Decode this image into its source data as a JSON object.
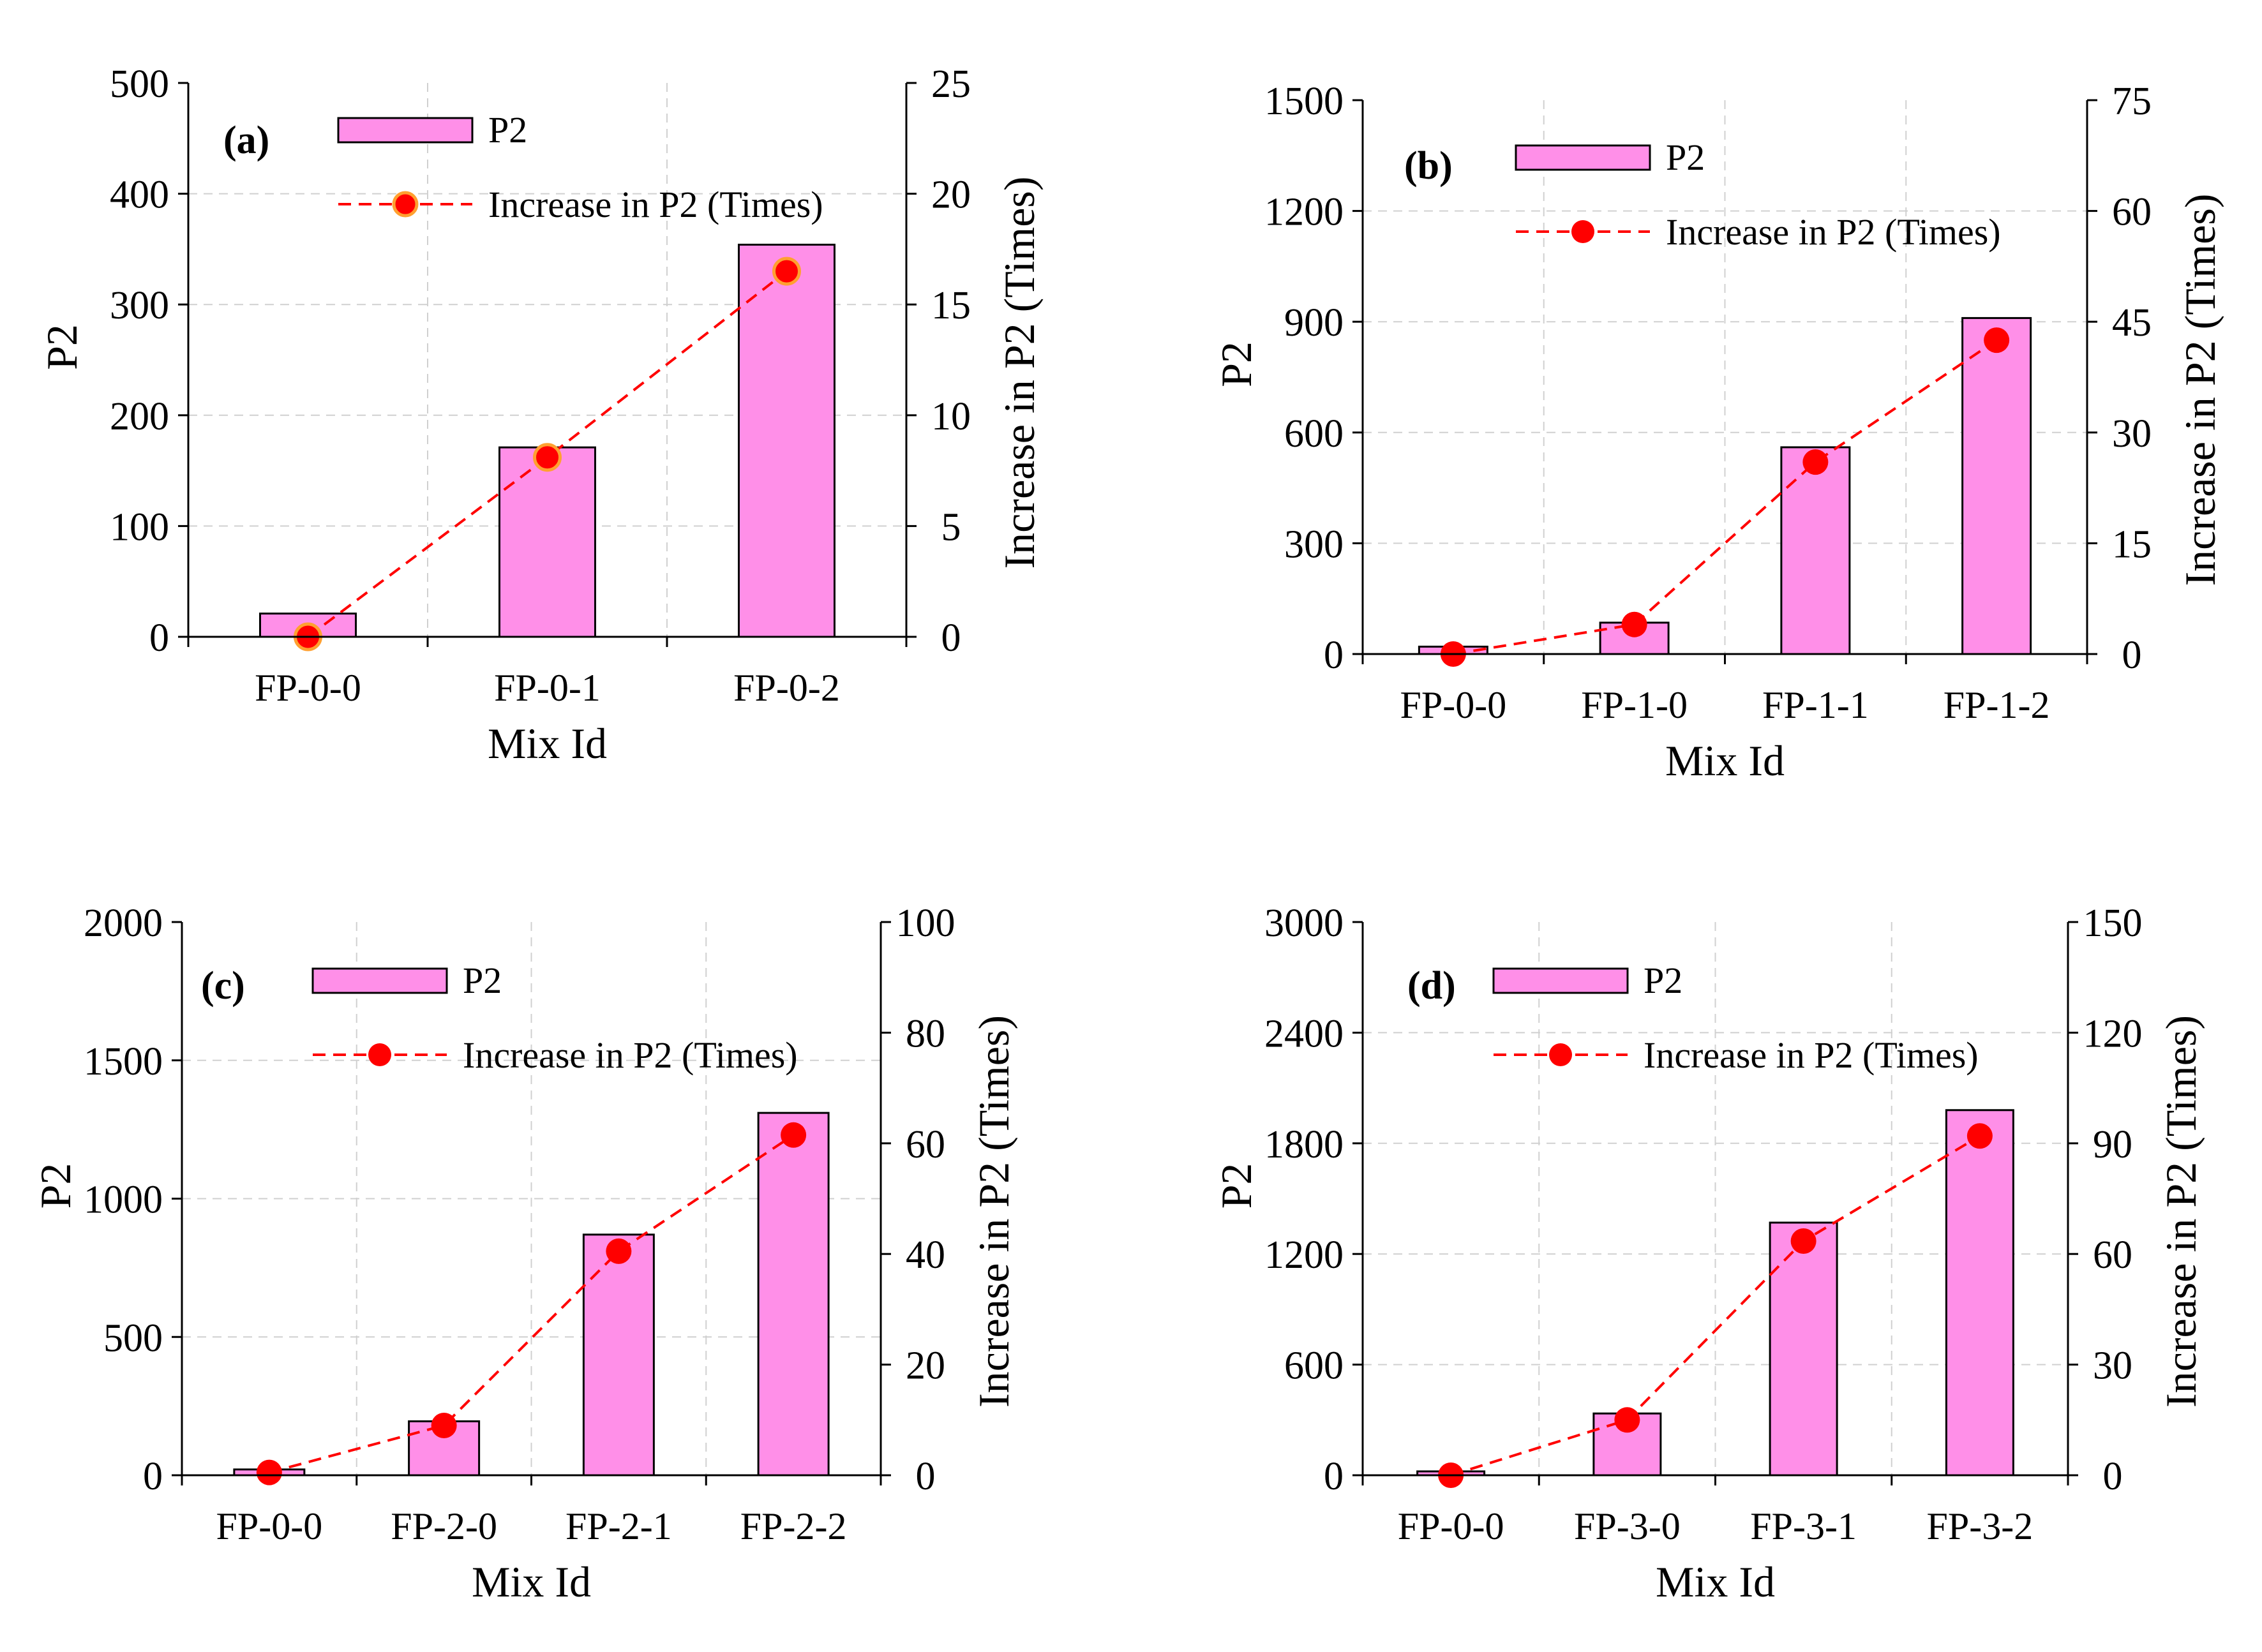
{
  "colors": {
    "bar_fill": "#FF8FE8",
    "bar_stroke": "#000000",
    "line": "#FF0000",
    "marker": "#FF0000",
    "marker_edge_a": "#FFA030",
    "grid": "#D0D0D0"
  },
  "legend": {
    "bar_label": "P2",
    "line_label": "Increase in P2 (Times)"
  },
  "chart_data": [
    {
      "panel": "(a)",
      "type": "bar+line",
      "xlabel": "Mix Id",
      "ylabel": "P2",
      "y2label": "Increase in P2 (Times)",
      "categories": [
        "FP-0-0",
        "FP-0-1",
        "FP-0-2"
      ],
      "series": [
        {
          "name": "P2",
          "type": "bar",
          "axis": "left",
          "values": [
            21,
            171,
            354
          ]
        },
        {
          "name": "Increase in P2 (Times)",
          "type": "line",
          "axis": "right",
          "values": [
            0,
            8.1,
            16.5
          ]
        }
      ],
      "ylim": [
        0,
        500
      ],
      "yticks": [
        0,
        100,
        200,
        300,
        400,
        500
      ],
      "y2lim": [
        0,
        25
      ],
      "y2ticks": [
        0,
        5,
        10,
        15,
        20,
        25
      ],
      "grid": true,
      "legend_position": "top-right"
    },
    {
      "panel": "(b)",
      "type": "bar+line",
      "xlabel": "Mix Id",
      "ylabel": "P2",
      "y2label": "Increase in P2 (Times)",
      "categories": [
        "FP-0-0",
        "FP-1-0",
        "FP-1-1",
        "FP-1-2"
      ],
      "series": [
        {
          "name": "P2",
          "type": "bar",
          "axis": "left",
          "values": [
            20,
            85,
            560,
            910
          ]
        },
        {
          "name": "Increase in P2 (Times)",
          "type": "line",
          "axis": "right",
          "values": [
            0,
            4,
            26,
            42.5
          ]
        }
      ],
      "ylim": [
        0,
        1500
      ],
      "yticks": [
        0,
        300,
        600,
        900,
        1200,
        1500
      ],
      "y2lim": [
        0,
        75
      ],
      "y2ticks": [
        0,
        15,
        30,
        45,
        60,
        75
      ],
      "grid": true,
      "legend_position": "top-right"
    },
    {
      "panel": "(c)",
      "type": "bar+line",
      "xlabel": "Mix Id",
      "ylabel": "P2",
      "y2label": "Increase in P2 (Times)",
      "categories": [
        "FP-0-0",
        "FP-2-0",
        "FP-2-1",
        "FP-2-2"
      ],
      "series": [
        {
          "name": "P2",
          "type": "bar",
          "axis": "left",
          "values": [
            21,
            195,
            870,
            1310
          ]
        },
        {
          "name": "Increase in P2 (Times)",
          "type": "line",
          "axis": "right",
          "values": [
            0.5,
            9,
            40.5,
            61.5
          ]
        }
      ],
      "ylim": [
        0,
        2000
      ],
      "yticks": [
        0,
        500,
        1000,
        1500,
        2000
      ],
      "y2lim": [
        0,
        100
      ],
      "y2ticks": [
        0,
        20,
        40,
        60,
        80,
        100
      ],
      "grid": true,
      "legend_position": "top-right"
    },
    {
      "panel": "(d)",
      "type": "bar+line",
      "xlabel": "Mix Id",
      "ylabel": "P2",
      "y2label": "Increase in P2 (Times)",
      "categories": [
        "FP-0-0",
        "FP-3-0",
        "FP-3-1",
        "FP-3-2"
      ],
      "series": [
        {
          "name": "P2",
          "type": "bar",
          "axis": "left",
          "values": [
            21,
            335,
            1370,
            1980
          ]
        },
        {
          "name": "Increase in P2 (Times)",
          "type": "line",
          "axis": "right",
          "values": [
            0,
            15,
            63.5,
            92
          ]
        }
      ],
      "ylim": [
        0,
        3000
      ],
      "yticks": [
        0,
        600,
        1200,
        1800,
        2400,
        3000
      ],
      "y2lim": [
        0,
        150
      ],
      "y2ticks": [
        0,
        30,
        60,
        90,
        120,
        150
      ],
      "grid": true,
      "legend_position": "top-right"
    }
  ]
}
